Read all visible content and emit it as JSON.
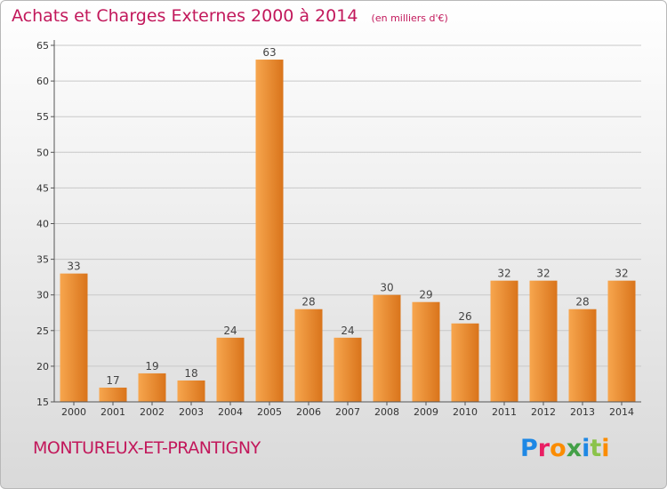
{
  "header": {
    "title": "Achats et Charges Externes 2000 à 2014",
    "unit": "(en milliers d'€)"
  },
  "footer": {
    "commune": "MONTUREUX-ET-PRANTIGNY",
    "brand": "Proxiti",
    "brand_colors": [
      "#1e88e5",
      "#e91e63",
      "#fb8c00",
      "#43a047",
      "#1e88e5",
      "#8bc34a",
      "#fb8c00"
    ]
  },
  "colors": {
    "title": "#c2185b",
    "bar_light": "#f7a64e",
    "bar_dark": "#d9741b",
    "axis": "#555555",
    "grid": "#c8c8c8"
  },
  "chart_data": {
    "type": "bar",
    "title": "Achats et Charges Externes 2000 à 2014",
    "subtitle": "(en milliers d'€)",
    "categories": [
      "2000",
      "2001",
      "2002",
      "2003",
      "2004",
      "2005",
      "2006",
      "2007",
      "2008",
      "2009",
      "2010",
      "2011",
      "2012",
      "2013",
      "2014"
    ],
    "values": [
      33,
      17,
      19,
      18,
      24,
      63,
      28,
      24,
      30,
      29,
      26,
      32,
      32,
      28,
      32
    ],
    "ylim": [
      15,
      65
    ],
    "yticks": [
      15,
      20,
      25,
      30,
      35,
      40,
      45,
      50,
      55,
      60,
      65
    ],
    "grid": true,
    "xlabel": "",
    "ylabel": ""
  }
}
